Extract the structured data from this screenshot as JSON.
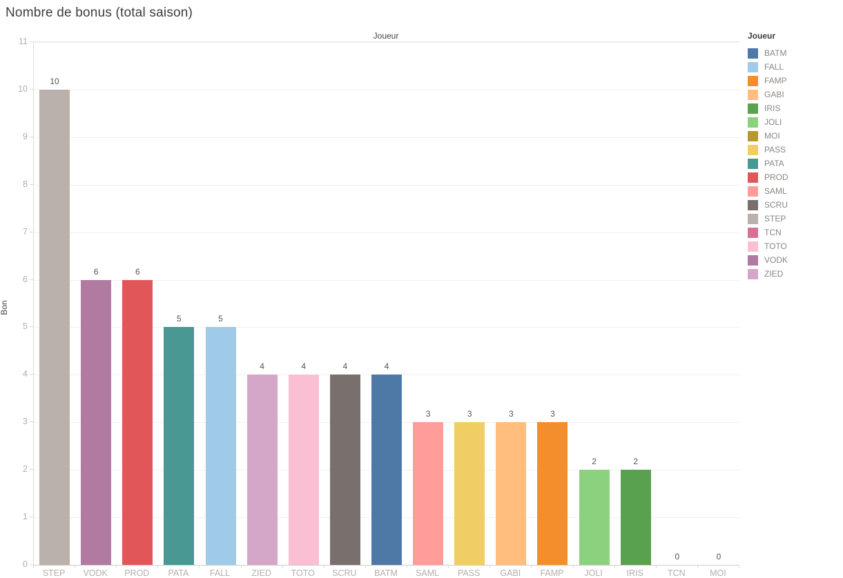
{
  "title": "Nombre de bonus (total saison)",
  "chart_data": {
    "type": "bar",
    "title": "Nombre de bonus (total saison)",
    "xlabel": "Joueur",
    "ylabel": "Bon",
    "ylim": [
      0,
      11
    ],
    "yticks": [
      0,
      1,
      2,
      3,
      4,
      5,
      6,
      7,
      8,
      9,
      10,
      11
    ],
    "grid": true,
    "categories": [
      "STEP",
      "VODK",
      "PROD",
      "PATA",
      "FALL",
      "ZIED",
      "TOTO",
      "SCRU",
      "BATM",
      "SAML",
      "PASS",
      "GABI",
      "FAMP",
      "JOLI",
      "IRIS",
      "TCN",
      "MOI"
    ],
    "values": [
      10,
      6,
      6,
      5,
      5,
      4,
      4,
      4,
      4,
      3,
      3,
      3,
      3,
      2,
      2,
      0,
      0
    ],
    "bar_colors": {
      "STEP": "#bab0ac",
      "VODK": "#b07aa1",
      "PROD": "#e15759",
      "PATA": "#499894",
      "FALL": "#a0cbe8",
      "ZIED": "#d4a6c8",
      "TOTO": "#fabfd2",
      "SCRU": "#79706e",
      "BATM": "#4e79a7",
      "SAML": "#ff9d9a",
      "PASS": "#f1ce63",
      "GABI": "#ffbe7d",
      "FAMP": "#f28e2b",
      "JOLI": "#8cd17d",
      "IRIS": "#59a14f",
      "TCN": "#d37295",
      "MOI": "#b6992d"
    },
    "legend": {
      "title": "Joueur",
      "position": "right",
      "entries": [
        {
          "label": "BATM",
          "color": "#4e79a7"
        },
        {
          "label": "FALL",
          "color": "#a0cbe8"
        },
        {
          "label": "FAMP",
          "color": "#f28e2b"
        },
        {
          "label": "GABI",
          "color": "#ffbe7d"
        },
        {
          "label": "IRIS",
          "color": "#59a14f"
        },
        {
          "label": "JOLI",
          "color": "#8cd17d"
        },
        {
          "label": "MOI",
          "color": "#b6992d"
        },
        {
          "label": "PASS",
          "color": "#f1ce63"
        },
        {
          "label": "PATA",
          "color": "#499894"
        },
        {
          "label": "PROD",
          "color": "#e15759"
        },
        {
          "label": "SAML",
          "color": "#ff9d9a"
        },
        {
          "label": "SCRU",
          "color": "#79706e"
        },
        {
          "label": "STEP",
          "color": "#bab0ac"
        },
        {
          "label": "TCN",
          "color": "#d37295"
        },
        {
          "label": "TOTO",
          "color": "#fabfd2"
        },
        {
          "label": "VODK",
          "color": "#b07aa1"
        },
        {
          "label": "ZIED",
          "color": "#d4a6c8"
        }
      ]
    }
  }
}
